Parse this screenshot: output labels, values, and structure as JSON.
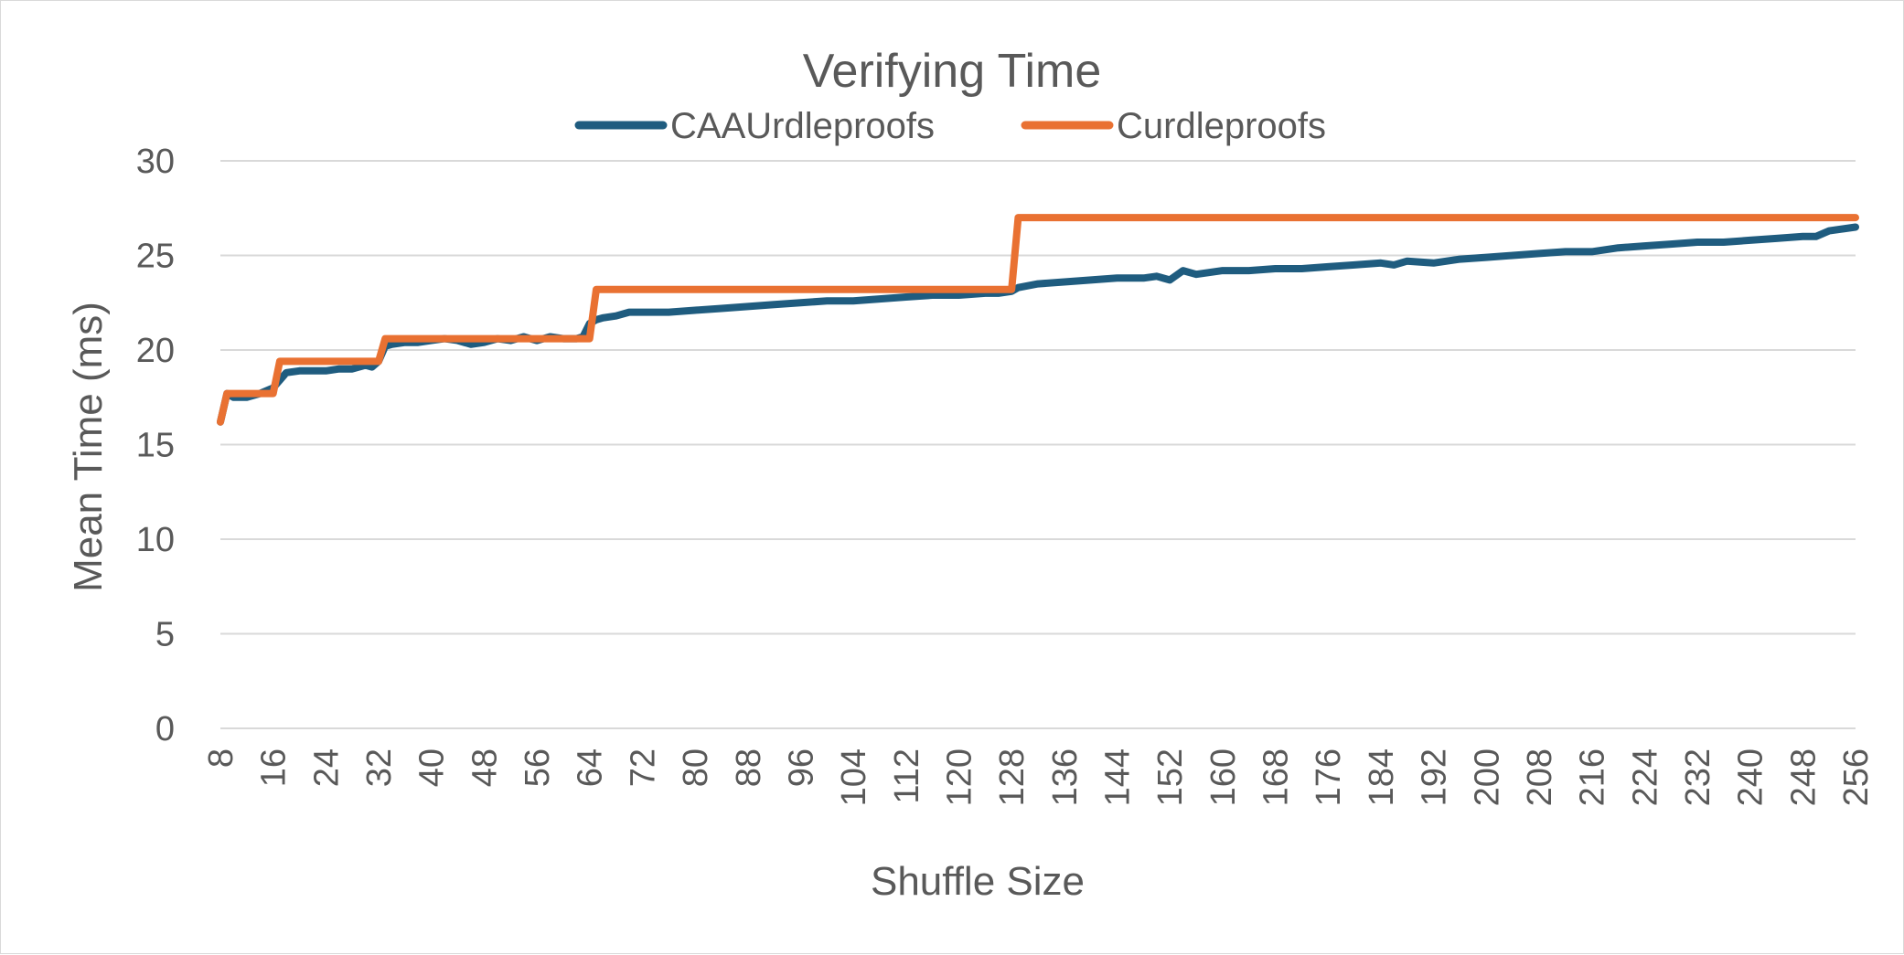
{
  "chart_data": {
    "type": "line",
    "title": "Verifying Time",
    "xlabel": "Shuffle Size",
    "ylabel": "Mean Time (ms)",
    "xlim": [
      8,
      256
    ],
    "ylim": [
      0,
      30
    ],
    "y_ticks": [
      "0",
      "5",
      "10",
      "15",
      "20",
      "25",
      "30"
    ],
    "x_ticks": [
      "8",
      "16",
      "24",
      "32",
      "40",
      "48",
      "56",
      "64",
      "72",
      "80",
      "88",
      "96",
      "104",
      "112",
      "120",
      "128",
      "136",
      "144",
      "152",
      "160",
      "168",
      "176",
      "184",
      "192",
      "200",
      "208",
      "216",
      "224",
      "232",
      "240",
      "248",
      "256"
    ],
    "grid": "horizontal",
    "legend_position": "top",
    "series": [
      {
        "name": "CAAUrdleproofs",
        "color": "#1F5C7F",
        "x": [
          8,
          9,
          10,
          12,
          14,
          16,
          17,
          18,
          20,
          22,
          24,
          26,
          28,
          30,
          31,
          32,
          33,
          34,
          36,
          38,
          40,
          42,
          44,
          46,
          48,
          50,
          52,
          54,
          56,
          58,
          60,
          62,
          63,
          64,
          65,
          66,
          68,
          70,
          72,
          76,
          80,
          84,
          88,
          92,
          96,
          100,
          104,
          108,
          112,
          116,
          120,
          124,
          126,
          128,
          129,
          132,
          136,
          140,
          144,
          148,
          150,
          152,
          154,
          156,
          160,
          164,
          168,
          172,
          176,
          180,
          184,
          186,
          188,
          192,
          196,
          200,
          204,
          208,
          212,
          216,
          220,
          224,
          228,
          232,
          236,
          240,
          244,
          248,
          250,
          252,
          256
        ],
        "y": [
          16.2,
          17.7,
          17.5,
          17.5,
          17.7,
          18.0,
          18.4,
          18.8,
          18.9,
          18.9,
          18.9,
          19.0,
          19.0,
          19.2,
          19.1,
          19.4,
          20.2,
          20.3,
          20.4,
          20.4,
          20.5,
          20.6,
          20.5,
          20.3,
          20.4,
          20.6,
          20.5,
          20.7,
          20.5,
          20.7,
          20.6,
          20.6,
          20.7,
          21.4,
          21.6,
          21.7,
          21.8,
          22.0,
          22.0,
          22.0,
          22.1,
          22.2,
          22.3,
          22.4,
          22.5,
          22.6,
          22.6,
          22.7,
          22.8,
          22.9,
          22.9,
          23.0,
          23.0,
          23.1,
          23.3,
          23.5,
          23.6,
          23.7,
          23.8,
          23.8,
          23.9,
          23.7,
          24.2,
          24.0,
          24.2,
          24.2,
          24.3,
          24.3,
          24.4,
          24.5,
          24.6,
          24.5,
          24.7,
          24.6,
          24.8,
          24.9,
          25.0,
          25.1,
          25.2,
          25.2,
          25.4,
          25.5,
          25.6,
          25.7,
          25.7,
          25.8,
          25.9,
          26.0,
          26.0,
          26.3,
          26.5
        ]
      },
      {
        "name": "Curdleproofs",
        "color": "#E97132",
        "x": [
          8,
          9,
          16,
          17,
          32,
          33,
          64,
          65,
          128,
          129,
          256
        ],
        "y": [
          16.2,
          17.7,
          17.7,
          19.4,
          19.4,
          20.6,
          20.6,
          23.2,
          23.2,
          27.0,
          27.0
        ]
      }
    ]
  }
}
